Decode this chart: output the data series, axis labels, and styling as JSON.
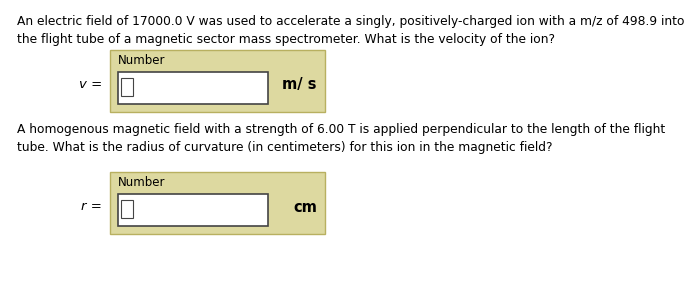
{
  "text1": "An electric field of 17000.0 V was used to accelerate a singly, positively-charged ion with a m/z of 498.9 into\nthe flight tube of a magnetic sector mass spectrometer. What is the velocity of the ion?",
  "text2": "A homogenous magnetic field with a strength of 6.00 T is applied perpendicular to the length of the flight\ntube. What is the radius of curvature (in centimeters) for this ion in the magnetic field?",
  "label1": "v =",
  "label2": "r =",
  "unit1": "m/ s",
  "unit2": "cm",
  "box_label": "Number",
  "bg_color": "#ffffff",
  "box_outer_color": "#ddd9a0",
  "box_outer_edge": "#b8b060",
  "box_inner_color": "#ffffff",
  "box_inner_edge": "#444444",
  "text_color": "#000000",
  "font_size_body": 8.8,
  "font_size_label": 9.5,
  "font_size_unit": 10.5,
  "font_size_number": 8.5
}
